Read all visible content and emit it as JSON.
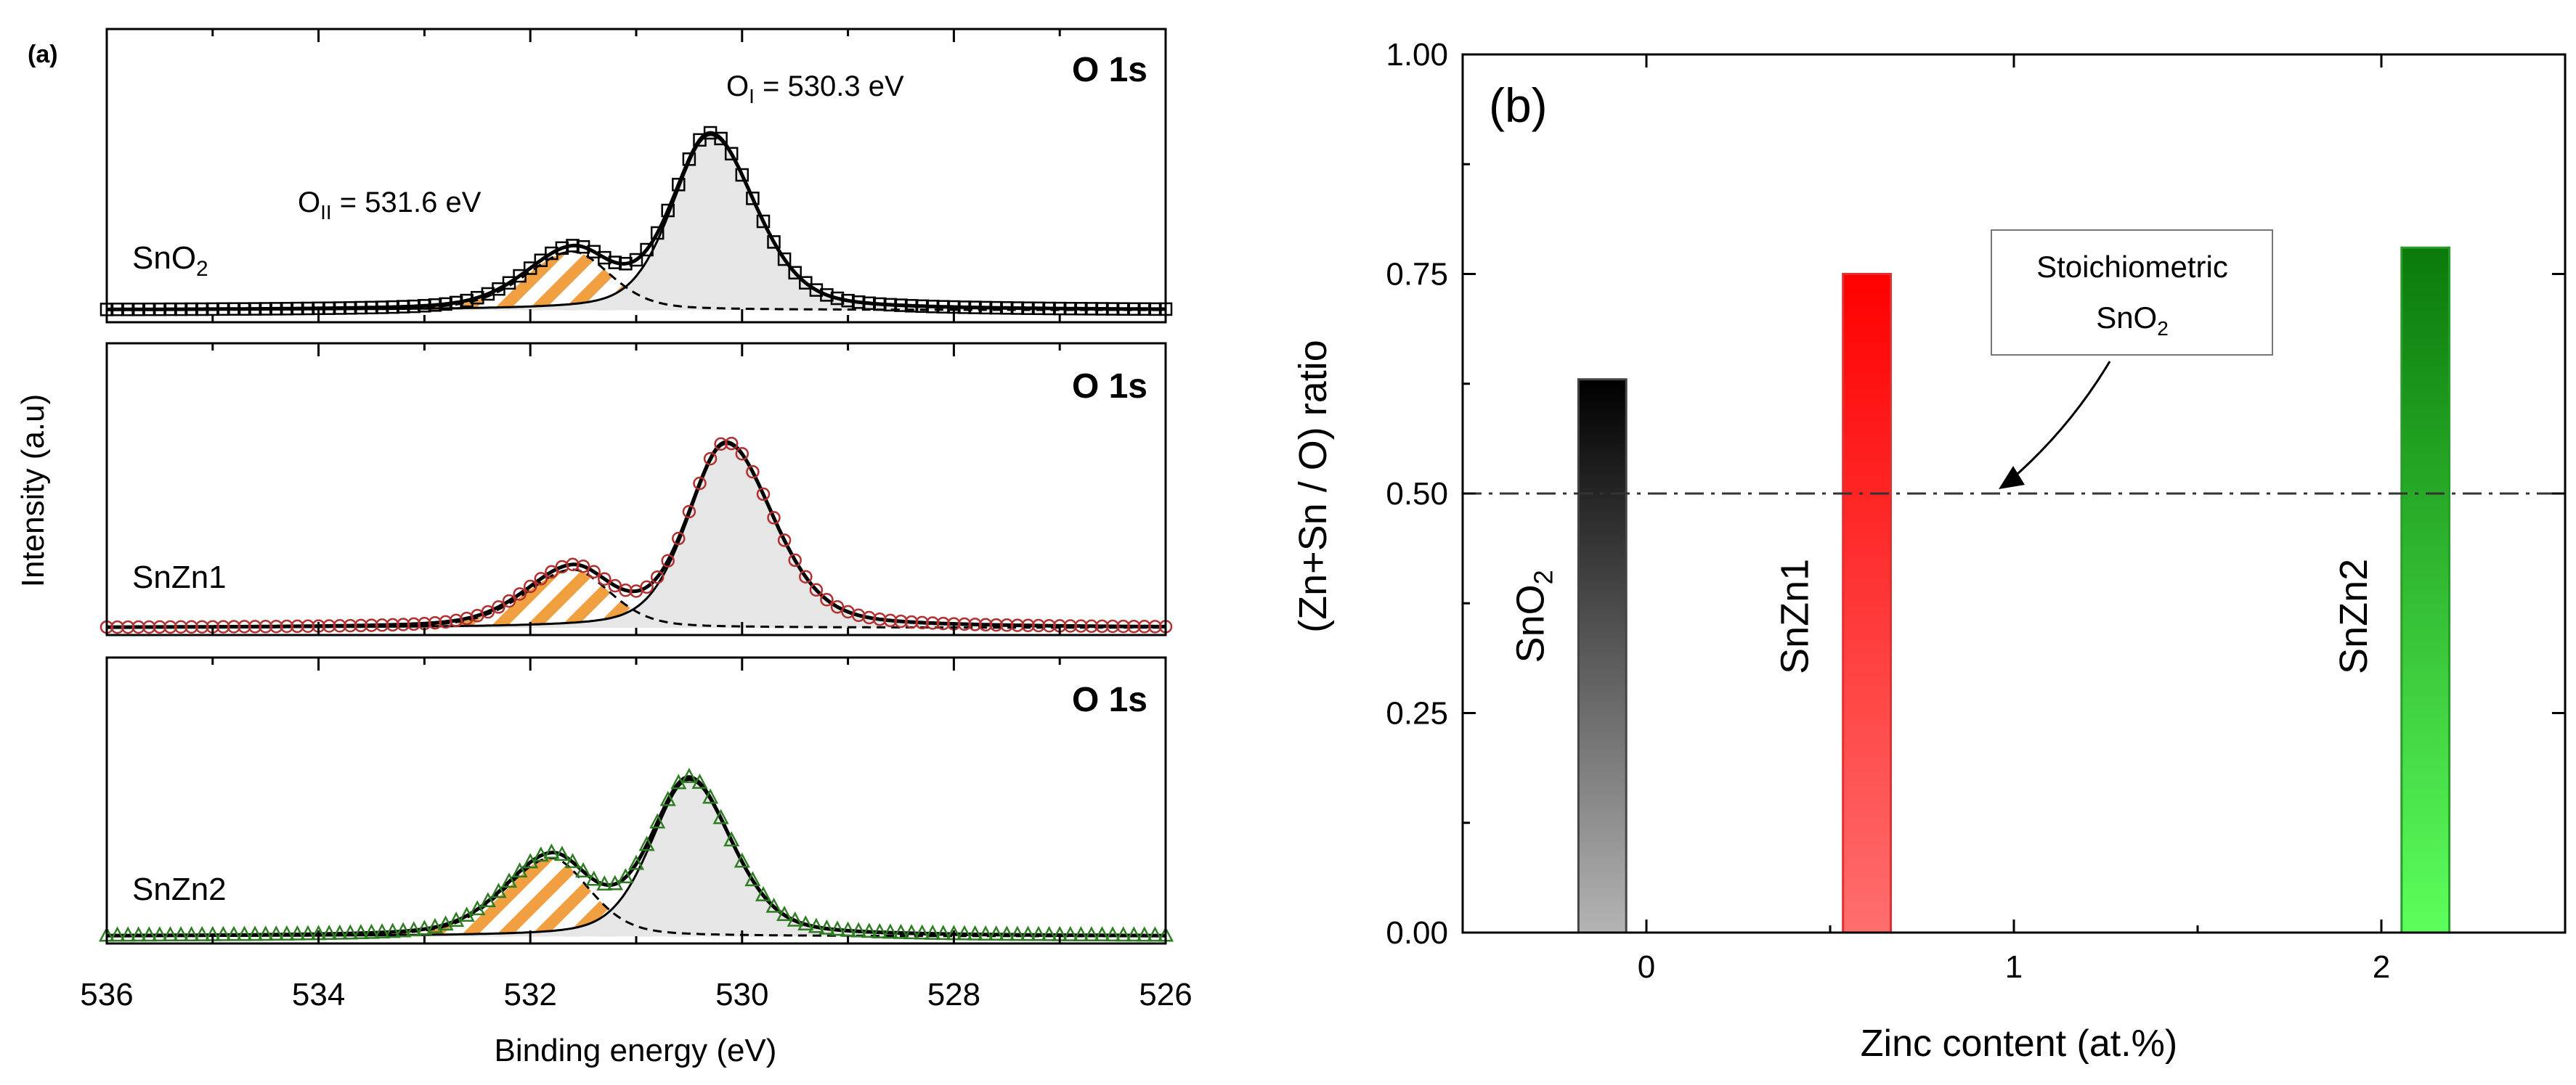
{
  "chart_data": [
    {
      "type": "line",
      "panel_label": "(a)",
      "title": "",
      "xlabel": "Binding energy (eV)",
      "ylabel": "Intensity (a.u)",
      "xlim": [
        536,
        526
      ],
      "x_reversed": true,
      "xticks": [
        536,
        534,
        532,
        530,
        528,
        526
      ],
      "yticks": [],
      "grid": false,
      "fill_colors": {
        "O_I": "#e6e6e6",
        "O_II_hatch": "#f0a040"
      },
      "subplots": [
        {
          "sample": "SnO2",
          "label": "SnO",
          "label_sub": "2",
          "core_level": "O 1s",
          "marker": "square",
          "marker_color": "#000000",
          "baseline": 0.05,
          "components": [
            {
              "name": "O_I",
              "center_eV": 530.3,
              "amplitude": 0.72,
              "fwhm_low_side": 1.0,
              "fwhm_high_side": 0.85
            },
            {
              "name": "O_II",
              "center_eV": 531.6,
              "amplitude": 0.24,
              "fwhm_low_side": 0.85,
              "fwhm_high_side": 1.05
            }
          ],
          "annotations": [
            {
              "main": "O",
              "sub": "I",
              "rest": " = 530.3 eV"
            },
            {
              "main": "O",
              "sub": "II",
              "rest": " = 531.6 eV"
            }
          ]
        },
        {
          "sample": "SnZn1",
          "label": "SnZn1",
          "label_sub": "",
          "core_level": "O 1s",
          "marker": "circle",
          "marker_color": "#b23030",
          "baseline": 0.03,
          "components": [
            {
              "name": "O_I",
              "center_eV": 530.15,
              "amplitude": 0.76,
              "fwhm_low_side": 1.05,
              "fwhm_high_side": 0.85
            },
            {
              "name": "O_II",
              "center_eV": 531.6,
              "amplitude": 0.24,
              "fwhm_low_side": 0.85,
              "fwhm_high_side": 1.05
            }
          ],
          "annotations": []
        },
        {
          "sample": "SnZn2",
          "label": "SnZn2",
          "label_sub": "",
          "core_level": "O 1s",
          "marker": "triangle",
          "marker_color": "#2e7d22",
          "baseline": 0.03,
          "components": [
            {
              "name": "O_I",
              "center_eV": 530.5,
              "amplitude": 0.66,
              "fwhm_low_side": 0.95,
              "fwhm_high_side": 0.85
            },
            {
              "name": "O_II",
              "center_eV": 531.8,
              "amplitude": 0.33,
              "fwhm_low_side": 0.85,
              "fwhm_high_side": 1.05
            }
          ],
          "annotations": []
        }
      ]
    },
    {
      "type": "bar",
      "panel_label": "(b)",
      "title": "",
      "xlabel": "Zinc content (at.%)",
      "ylabel": "(Zn+Sn / O) ratio",
      "xlim": [
        -0.5,
        2.5
      ],
      "ylim": [
        0,
        1.0
      ],
      "xticks": [
        0,
        1,
        2
      ],
      "yticks": [
        "0.00",
        "0.25",
        "0.50",
        "0.75",
        "1.00"
      ],
      "grid": false,
      "bar_width_units": 0.13,
      "bars": [
        {
          "x": -0.12,
          "value": 0.63,
          "label": "SnO",
          "label_sub": "2",
          "color_top": "#000000",
          "color_bottom": "#b4b4b4",
          "edge": "#444444"
        },
        {
          "x": 0.6,
          "value": 0.75,
          "label": "SnZn1",
          "label_sub": "",
          "color_top": "#ff0000",
          "color_bottom": "#ff6e6e",
          "edge": "#e03030"
        },
        {
          "x": 2.12,
          "value": 0.78,
          "label": "SnZn2",
          "label_sub": "",
          "color_top": "#0a7a0a",
          "color_bottom": "#5cff5c",
          "edge": "#2a9a2a"
        }
      ],
      "reference_line": {
        "value": 0.5,
        "style": "dash-dot"
      },
      "annotation": {
        "line1": "Stoichiometric",
        "line2_main": "SnO",
        "line2_sub": "2"
      }
    }
  ]
}
